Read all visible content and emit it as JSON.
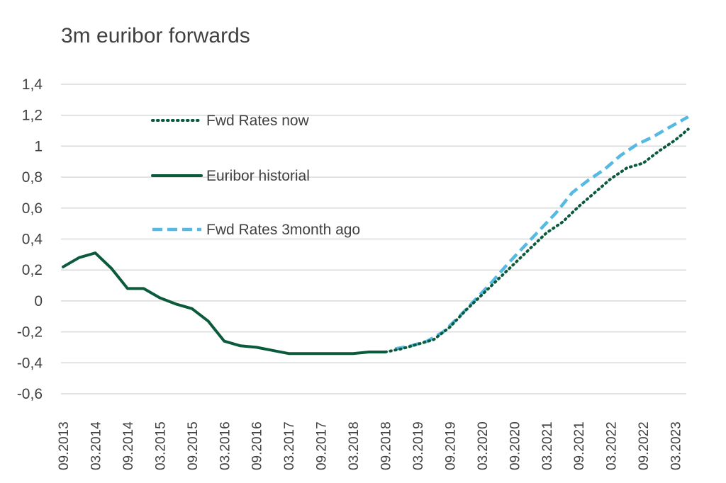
{
  "chart_data": {
    "type": "line",
    "title": "3m euribor  forwards",
    "xlabel": "",
    "ylabel": "",
    "ylim": [
      -0.6,
      1.4
    ],
    "yticks": [
      1.4,
      1.2,
      1,
      0.8,
      0.6,
      0.4,
      0.2,
      0,
      -0.2,
      -0.4,
      -0.6
    ],
    "ytick_labels": [
      "1,4",
      "1,2",
      "1",
      "0,8",
      "0,6",
      "0,4",
      "0,2",
      "0",
      "-0,2",
      "-0,4",
      "-0,6"
    ],
    "x_labels": [
      "09.2013",
      "03.2014",
      "09.2014",
      "03.2015",
      "09.2015",
      "03.2016",
      "09.2016",
      "03.2017",
      "09.2017",
      "03.2018",
      "09.2018",
      "03.2019",
      "09.2019",
      "03.2020",
      "09.2020",
      "03.2021",
      "09.2021",
      "03.2022",
      "09.2022",
      "03.2023"
    ],
    "grid": true,
    "legend_position": "upper-left-inside",
    "series": [
      {
        "name": "Fwd Rates now",
        "style": "dotted",
        "color": "#0b5a3c",
        "points": [
          [
            10.0,
            -0.33
          ],
          [
            10.5,
            -0.31
          ],
          [
            11.0,
            -0.28
          ],
          [
            11.5,
            -0.25
          ],
          [
            12.0,
            -0.17
          ],
          [
            12.5,
            -0.06
          ],
          [
            13.0,
            0.04
          ],
          [
            13.5,
            0.14
          ],
          [
            14.0,
            0.24
          ],
          [
            14.5,
            0.34
          ],
          [
            15.0,
            0.44
          ],
          [
            15.5,
            0.51
          ],
          [
            16.0,
            0.61
          ],
          [
            16.5,
            0.7
          ],
          [
            17.0,
            0.79
          ],
          [
            17.5,
            0.86
          ],
          [
            18.0,
            0.89
          ],
          [
            18.5,
            0.97
          ],
          [
            19.0,
            1.04
          ],
          [
            19.4,
            1.11
          ]
        ]
      },
      {
        "name": "Euribor historial",
        "style": "solid",
        "color": "#0b5a3c",
        "points": [
          [
            0.0,
            0.22
          ],
          [
            0.5,
            0.28
          ],
          [
            1.0,
            0.31
          ],
          [
            1.5,
            0.21
          ],
          [
            2.0,
            0.08
          ],
          [
            2.5,
            0.08
          ],
          [
            3.0,
            0.02
          ],
          [
            3.5,
            -0.02
          ],
          [
            4.0,
            -0.05
          ],
          [
            4.5,
            -0.13
          ],
          [
            5.0,
            -0.26
          ],
          [
            5.5,
            -0.29
          ],
          [
            6.0,
            -0.3
          ],
          [
            6.5,
            -0.32
          ],
          [
            7.0,
            -0.34
          ],
          [
            7.5,
            -0.34
          ],
          [
            8.0,
            -0.34
          ],
          [
            8.5,
            -0.34
          ],
          [
            9.0,
            -0.34
          ],
          [
            9.5,
            -0.33
          ],
          [
            10.0,
            -0.33
          ]
        ]
      },
      {
        "name": "Fwd Rates 3month ago",
        "style": "dashed",
        "color": "#56b9e3",
        "points": [
          [
            10.3,
            -0.31
          ],
          [
            10.8,
            -0.29
          ],
          [
            11.3,
            -0.26
          ],
          [
            11.8,
            -0.2
          ],
          [
            12.3,
            -0.1
          ],
          [
            12.8,
            0.01
          ],
          [
            13.3,
            0.12
          ],
          [
            13.8,
            0.24
          ],
          [
            14.3,
            0.35
          ],
          [
            14.8,
            0.46
          ],
          [
            15.3,
            0.57
          ],
          [
            15.8,
            0.7
          ],
          [
            16.3,
            0.78
          ],
          [
            16.8,
            0.85
          ],
          [
            17.3,
            0.94
          ],
          [
            17.8,
            1.01
          ],
          [
            18.3,
            1.06
          ],
          [
            18.8,
            1.12
          ],
          [
            19.4,
            1.19
          ]
        ]
      }
    ]
  }
}
